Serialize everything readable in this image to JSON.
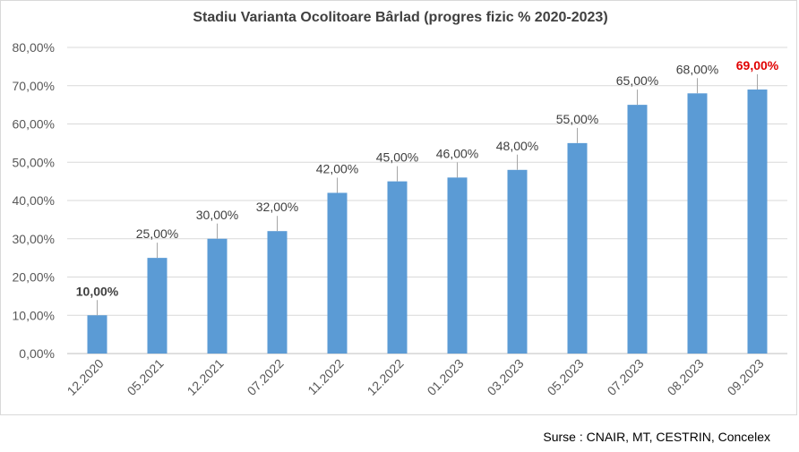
{
  "chart_data": {
    "type": "bar",
    "title": "Stadiu Varianta Ocolitoare Bârlad (progres fizic % 2020-2023)",
    "categories": [
      "12.2020",
      "05.2021",
      "12.2021",
      "07.2022",
      "11.2022",
      "12.2022",
      "01.2023",
      "03.2023",
      "05.2023",
      "07.2023",
      "08.2023",
      "09.2023"
    ],
    "values": [
      10,
      25,
      30,
      32,
      42,
      45,
      46,
      48,
      55,
      65,
      68,
      69
    ],
    "data_labels": [
      "10,00%",
      "25,00%",
      "30,00%",
      "32,00%",
      "42,00%",
      "45,00%",
      "46,00%",
      "48,00%",
      "55,00%",
      "65,00%",
      "68,00%",
      "69,00%"
    ],
    "y_ticks": [
      "0,00%",
      "10,00%",
      "20,00%",
      "30,00%",
      "40,00%",
      "50,00%",
      "60,00%",
      "70,00%",
      "80,00%"
    ],
    "ylim": [
      0,
      80
    ],
    "grid": true,
    "colors": {
      "bar": "#5b9bd5",
      "highlight_label": "#e00000",
      "label": "#404040",
      "grid": "#d9d9d9"
    }
  },
  "source_note": "Surse : CNAIR, MT, CESTRIN, Concelex"
}
